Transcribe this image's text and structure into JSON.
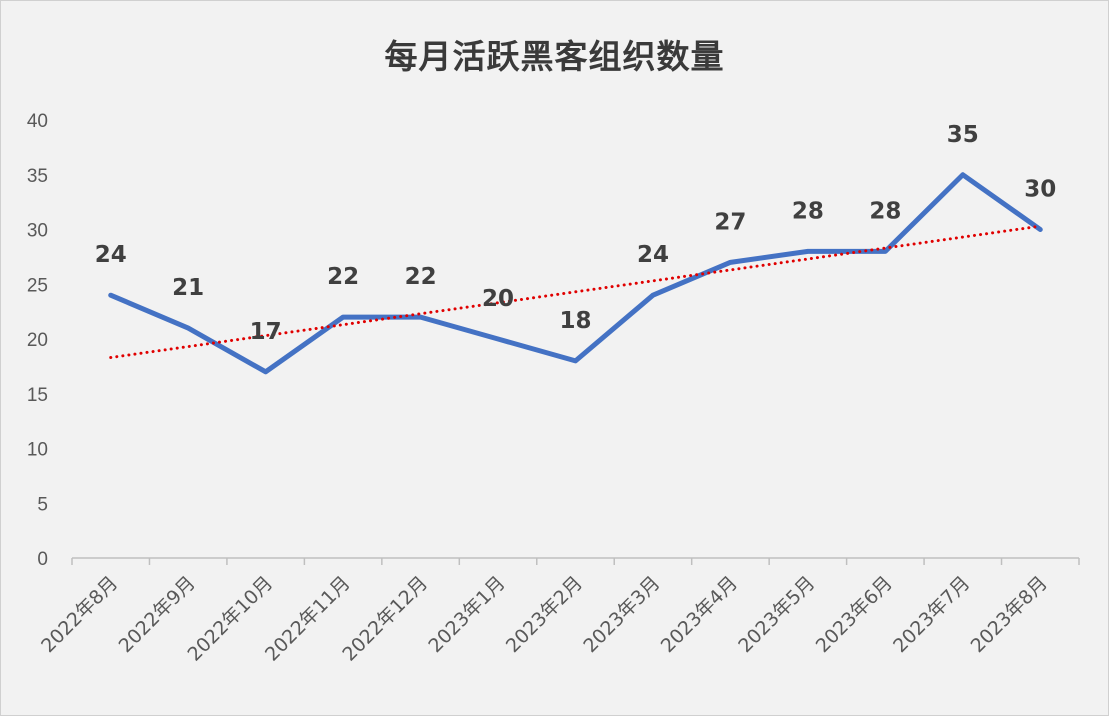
{
  "chart_data": {
    "type": "line",
    "title": "每月活跃黑客组织数量",
    "xlabel": "",
    "ylabel": "",
    "categories": [
      "2022年8月",
      "2022年9月",
      "2022年10月",
      "2022年11月",
      "2022年12月",
      "2023年1月",
      "2023年2月",
      "2023年3月",
      "2023年4月",
      "2023年5月",
      "2023年6月",
      "2023年7月",
      "2023年8月"
    ],
    "series": [
      {
        "values": [
          24,
          21,
          17,
          22,
          22,
          20,
          18,
          24,
          27,
          28,
          28,
          35,
          30
        ]
      }
    ],
    "data_labels": [
      "24",
      "21",
      "17",
      "22",
      "22",
      "20",
      "18",
      "24",
      "27",
      "28",
      "28",
      "35",
      "30"
    ],
    "ylim": [
      0,
      40
    ],
    "yticks": [
      "0",
      "5",
      "10",
      "15",
      "20",
      "25",
      "30",
      "35",
      "40"
    ],
    "trendline": {
      "type": "linear",
      "style": "dotted"
    },
    "grid": false,
    "legend": "none"
  },
  "colors": {
    "series": "#4472c4",
    "trendline": "#e00000",
    "axis": "#bfbfbf",
    "background": "#f2f2f2"
  }
}
